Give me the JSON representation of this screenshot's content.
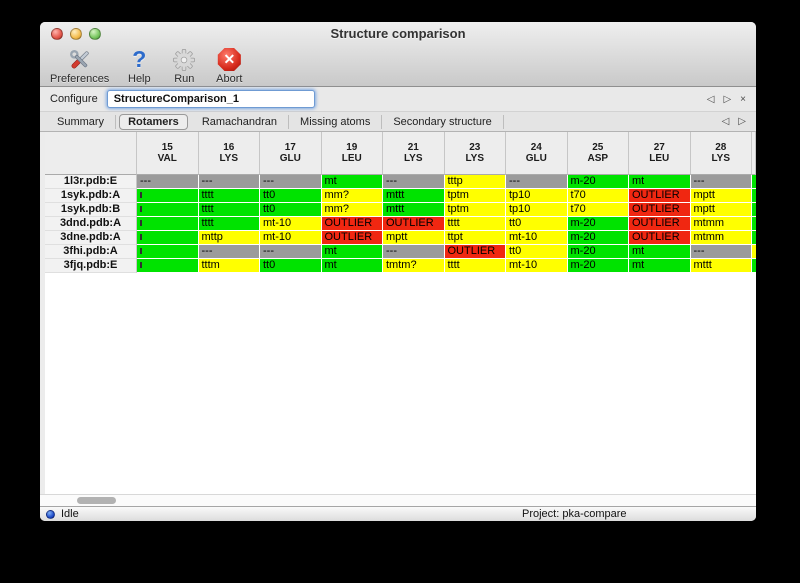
{
  "title": "Structure comparison",
  "toolbar": [
    "Preferences",
    "Help",
    "Run",
    "Abort"
  ],
  "configure": {
    "label": "Configure",
    "value": "StructureComparison_1"
  },
  "pager": {
    "prev": "◁",
    "next": "▷",
    "close": "×"
  },
  "tabs": [
    "Summary",
    "Rotamers",
    "Ramachandran",
    "Missing atoms",
    "Secondary structure"
  ],
  "active_tab": "Rotamers",
  "status": {
    "state": "Idle",
    "project": "Project: pka-compare"
  },
  "table": {
    "colors": {
      "green": "#00e300",
      "yellow": "#ffff00",
      "red": "#f02711",
      "gray": "#9b9b9b"
    },
    "columns": [
      {
        "num": "15",
        "res": "VAL"
      },
      {
        "num": "16",
        "res": "LYS"
      },
      {
        "num": "17",
        "res": "GLU"
      },
      {
        "num": "19",
        "res": "LEU"
      },
      {
        "num": "21",
        "res": "LYS"
      },
      {
        "num": "23",
        "res": "LYS"
      },
      {
        "num": "24",
        "res": "GLU"
      },
      {
        "num": "25",
        "res": "ASP"
      },
      {
        "num": "27",
        "res": "LEU"
      },
      {
        "num": "28",
        "res": "LYS"
      }
    ],
    "rows": [
      {
        "label": "1l3r.pdb:E",
        "edge": "green",
        "cells": [
          {
            "t": "---",
            "c": "gray"
          },
          {
            "t": "---",
            "c": "gray"
          },
          {
            "t": "---",
            "c": "gray"
          },
          {
            "t": "mt",
            "c": "green"
          },
          {
            "t": "---",
            "c": "gray"
          },
          {
            "t": "tttp",
            "c": "yellow"
          },
          {
            "t": "---",
            "c": "gray"
          },
          {
            "t": "m-20",
            "c": "green"
          },
          {
            "t": "mt",
            "c": "green"
          },
          {
            "t": "---",
            "c": "gray"
          }
        ]
      },
      {
        "label": "1syk.pdb:A",
        "edge": "green",
        "cells": [
          {
            "t": "",
            "c": "green",
            "clip": true
          },
          {
            "t": "tttt",
            "c": "green"
          },
          {
            "t": "tt0",
            "c": "green"
          },
          {
            "t": "mm?",
            "c": "yellow"
          },
          {
            "t": "mttt",
            "c": "green"
          },
          {
            "t": "tptm",
            "c": "yellow"
          },
          {
            "t": "tp10",
            "c": "yellow"
          },
          {
            "t": "t70",
            "c": "yellow"
          },
          {
            "t": "OUTLIER",
            "c": "red"
          },
          {
            "t": "mptt",
            "c": "yellow"
          }
        ]
      },
      {
        "label": "1syk.pdb:B",
        "edge": "green",
        "cells": [
          {
            "t": "",
            "c": "green",
            "clip": true
          },
          {
            "t": "tttt",
            "c": "green"
          },
          {
            "t": "tt0",
            "c": "green"
          },
          {
            "t": "mm?",
            "c": "yellow"
          },
          {
            "t": "mttt",
            "c": "green"
          },
          {
            "t": "tptm",
            "c": "yellow"
          },
          {
            "t": "tp10",
            "c": "yellow"
          },
          {
            "t": "t70",
            "c": "yellow"
          },
          {
            "t": "OUTLIER",
            "c": "red"
          },
          {
            "t": "mptt",
            "c": "yellow"
          }
        ]
      },
      {
        "label": "3dnd.pdb:A",
        "edge": "green",
        "cells": [
          {
            "t": "",
            "c": "green",
            "clip": true
          },
          {
            "t": "tttt",
            "c": "green"
          },
          {
            "t": "mt-10",
            "c": "yellow"
          },
          {
            "t": "OUTLIER",
            "c": "red"
          },
          {
            "t": "OUTLIER",
            "c": "red"
          },
          {
            "t": "tttt",
            "c": "yellow"
          },
          {
            "t": "tt0",
            "c": "yellow"
          },
          {
            "t": "m-20",
            "c": "green"
          },
          {
            "t": "OUTLIER",
            "c": "red"
          },
          {
            "t": "mtmm",
            "c": "yellow"
          }
        ]
      },
      {
        "label": "3dne.pdb:A",
        "edge": "green",
        "cells": [
          {
            "t": "",
            "c": "green",
            "clip": true
          },
          {
            "t": "mttp",
            "c": "yellow"
          },
          {
            "t": "mt-10",
            "c": "yellow"
          },
          {
            "t": "OUTLIER",
            "c": "red"
          },
          {
            "t": "mptt",
            "c": "yellow"
          },
          {
            "t": "ttpt",
            "c": "yellow"
          },
          {
            "t": "mt-10",
            "c": "yellow"
          },
          {
            "t": "m-20",
            "c": "green"
          },
          {
            "t": "OUTLIER",
            "c": "red"
          },
          {
            "t": "mtmm",
            "c": "yellow"
          }
        ]
      },
      {
        "label": "3fhi.pdb:A",
        "edge": "yellow",
        "cells": [
          {
            "t": "",
            "c": "green",
            "clip": true
          },
          {
            "t": "---",
            "c": "gray"
          },
          {
            "t": "---",
            "c": "gray"
          },
          {
            "t": "mt",
            "c": "green"
          },
          {
            "t": "---",
            "c": "gray"
          },
          {
            "t": "OUTLIER",
            "c": "red"
          },
          {
            "t": "tt0",
            "c": "yellow"
          },
          {
            "t": "m-20",
            "c": "green"
          },
          {
            "t": "mt",
            "c": "green"
          },
          {
            "t": "---",
            "c": "gray"
          }
        ]
      },
      {
        "label": "3fjq.pdb:E",
        "edge": "green",
        "cells": [
          {
            "t": "",
            "c": "green",
            "clip": true
          },
          {
            "t": "tttm",
            "c": "yellow"
          },
          {
            "t": "tt0",
            "c": "green"
          },
          {
            "t": "mt",
            "c": "green"
          },
          {
            "t": "tmtm?",
            "c": "yellow"
          },
          {
            "t": "tttt",
            "c": "yellow"
          },
          {
            "t": "mt-10",
            "c": "yellow"
          },
          {
            "t": "m-20",
            "c": "green"
          },
          {
            "t": "mt",
            "c": "green"
          },
          {
            "t": "mttt",
            "c": "yellow"
          }
        ]
      }
    ]
  }
}
